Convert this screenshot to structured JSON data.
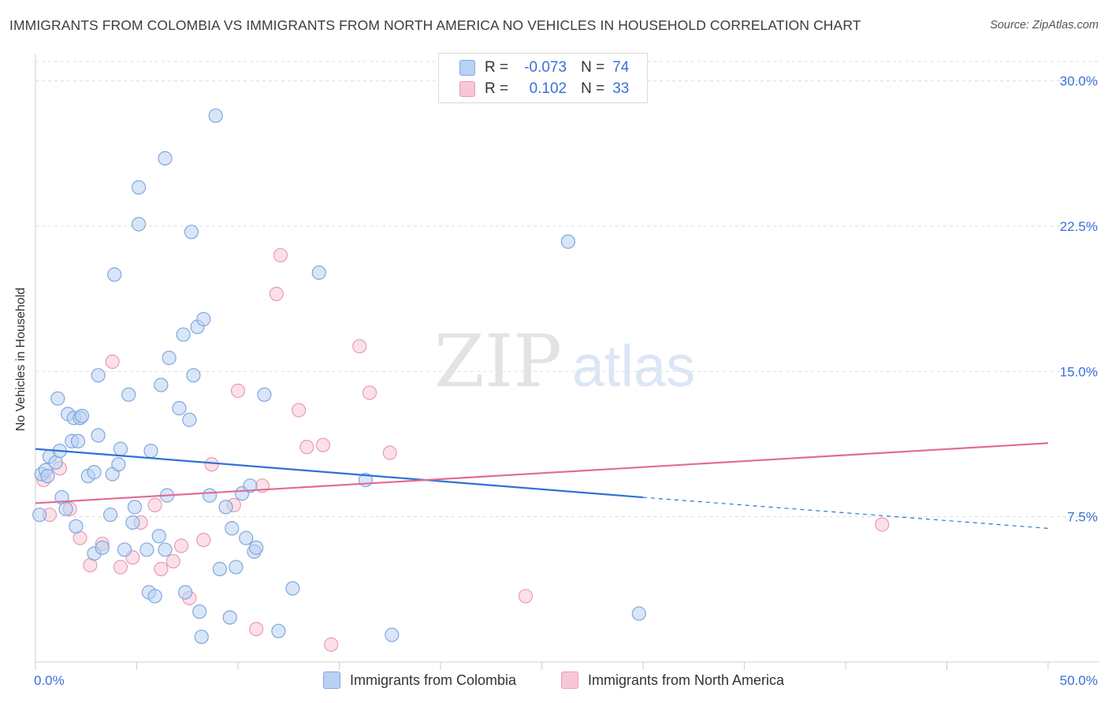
{
  "title": "IMMIGRANTS FROM COLOMBIA VS IMMIGRANTS FROM NORTH AMERICA NO VEHICLES IN HOUSEHOLD CORRELATION CHART",
  "source": "Source: ZipAtlas.com",
  "watermark": {
    "zip": "ZIP",
    "atlas": "atlas"
  },
  "legend": {
    "r_label": "R =",
    "n_label": "N =",
    "series1": {
      "r": "-0.073",
      "n": "74"
    },
    "series2": {
      "r": "0.102",
      "n": "33"
    }
  },
  "colors": {
    "blue_fill": "#b9d2f3",
    "blue_stroke": "#7fa7e0",
    "blue_line": "#2f72d6",
    "pink_fill": "#f8c7d6",
    "pink_stroke": "#ea9bb4",
    "pink_line": "#e06c98",
    "tick_text": "#3a6fd8",
    "grid": "#dcdcdc"
  },
  "chart_data": {
    "type": "scatter",
    "title": "IMMIGRANTS FROM COLOMBIA VS IMMIGRANTS FROM NORTH AMERICA NO VEHICLES IN HOUSEHOLD CORRELATION CHART",
    "xlabel": "",
    "ylabel": "No Vehicles in Household",
    "xlim": [
      0,
      50
    ],
    "ylim": [
      0,
      31
    ],
    "x_tick_labels": [
      "0.0%",
      "50.0%"
    ],
    "y_ticks": [
      7.5,
      15.0,
      22.5,
      30.0
    ],
    "y_tick_labels": [
      "7.5%",
      "15.0%",
      "22.5%",
      "30.0%"
    ],
    "series": [
      {
        "name": "Immigrants from Colombia",
        "r": -0.073,
        "n": 74,
        "trend": {
          "x0": 0,
          "y0": 11.0,
          "x1": 30,
          "y1": 8.5,
          "dash_to_x": 50,
          "dash_to_y": 6.9
        },
        "points": [
          [
            0.2,
            7.6
          ],
          [
            0.3,
            9.7
          ],
          [
            0.5,
            9.9
          ],
          [
            0.6,
            9.6
          ],
          [
            0.7,
            10.6
          ],
          [
            1.0,
            10.3
          ],
          [
            1.2,
            10.9
          ],
          [
            1.1,
            13.6
          ],
          [
            1.3,
            8.5
          ],
          [
            1.5,
            7.9
          ],
          [
            1.6,
            12.8
          ],
          [
            1.8,
            11.4
          ],
          [
            1.9,
            12.6
          ],
          [
            2.1,
            11.4
          ],
          [
            2.2,
            12.6
          ],
          [
            2.3,
            12.7
          ],
          [
            2.0,
            7.0
          ],
          [
            2.6,
            9.6
          ],
          [
            2.9,
            9.8
          ],
          [
            3.1,
            11.7
          ],
          [
            3.1,
            14.8
          ],
          [
            2.9,
            5.6
          ],
          [
            3.3,
            5.9
          ],
          [
            3.7,
            7.6
          ],
          [
            3.8,
            9.7
          ],
          [
            3.9,
            20.0
          ],
          [
            4.1,
            10.2
          ],
          [
            4.2,
            11.0
          ],
          [
            4.4,
            5.8
          ],
          [
            4.6,
            13.8
          ],
          [
            4.8,
            7.2
          ],
          [
            4.9,
            8.0
          ],
          [
            5.1,
            22.6
          ],
          [
            5.1,
            24.5
          ],
          [
            5.5,
            5.8
          ],
          [
            5.6,
            3.6
          ],
          [
            5.7,
            10.9
          ],
          [
            5.9,
            3.4
          ],
          [
            6.1,
            6.5
          ],
          [
            6.2,
            14.3
          ],
          [
            6.4,
            5.8
          ],
          [
            6.4,
            26.0
          ],
          [
            6.5,
            8.6
          ],
          [
            6.6,
            15.7
          ],
          [
            7.1,
            13.1
          ],
          [
            7.3,
            16.9
          ],
          [
            7.4,
            3.6
          ],
          [
            7.6,
            12.5
          ],
          [
            7.7,
            22.2
          ],
          [
            7.8,
            14.8
          ],
          [
            8.0,
            17.3
          ],
          [
            8.1,
            2.6
          ],
          [
            8.2,
            1.3
          ],
          [
            8.3,
            17.7
          ],
          [
            8.6,
            8.6
          ],
          [
            8.9,
            28.2
          ],
          [
            9.1,
            4.8
          ],
          [
            9.4,
            8.0
          ],
          [
            9.6,
            2.3
          ],
          [
            9.7,
            6.9
          ],
          [
            9.9,
            4.9
          ],
          [
            10.2,
            8.7
          ],
          [
            10.4,
            6.4
          ],
          [
            10.6,
            9.1
          ],
          [
            10.8,
            5.7
          ],
          [
            10.9,
            5.9
          ],
          [
            11.3,
            13.8
          ],
          [
            12.0,
            1.6
          ],
          [
            12.7,
            3.8
          ],
          [
            14.0,
            20.1
          ],
          [
            16.3,
            9.4
          ],
          [
            17.6,
            1.4
          ],
          [
            26.3,
            21.7
          ],
          [
            29.8,
            2.5
          ]
        ]
      },
      {
        "name": "Immigrants from North America",
        "r": 0.102,
        "n": 33,
        "trend": {
          "x0": 0,
          "y0": 8.2,
          "x1": 50,
          "y1": 11.3
        },
        "points": [
          [
            0.4,
            9.4
          ],
          [
            0.7,
            7.6
          ],
          [
            1.2,
            10.0
          ],
          [
            1.7,
            7.9
          ],
          [
            2.2,
            6.4
          ],
          [
            2.7,
            5.0
          ],
          [
            3.3,
            6.1
          ],
          [
            3.8,
            15.5
          ],
          [
            4.2,
            4.9
          ],
          [
            4.8,
            5.4
          ],
          [
            5.2,
            7.2
          ],
          [
            5.9,
            8.1
          ],
          [
            6.2,
            4.8
          ],
          [
            6.8,
            5.2
          ],
          [
            7.2,
            6.0
          ],
          [
            7.6,
            3.3
          ],
          [
            8.3,
            6.3
          ],
          [
            8.7,
            10.2
          ],
          [
            9.8,
            8.1
          ],
          [
            10.0,
            14.0
          ],
          [
            10.9,
            1.7
          ],
          [
            11.2,
            9.1
          ],
          [
            11.9,
            19.0
          ],
          [
            12.1,
            21.0
          ],
          [
            13.0,
            13.0
          ],
          [
            13.4,
            11.1
          ],
          [
            14.2,
            11.2
          ],
          [
            14.6,
            0.9
          ],
          [
            16.0,
            16.3
          ],
          [
            16.5,
            13.9
          ],
          [
            17.5,
            10.8
          ],
          [
            24.2,
            3.4
          ],
          [
            41.8,
            7.1
          ]
        ]
      }
    ]
  },
  "bottom_legend": [
    "Immigrants from Colombia",
    "Immigrants from North America"
  ]
}
